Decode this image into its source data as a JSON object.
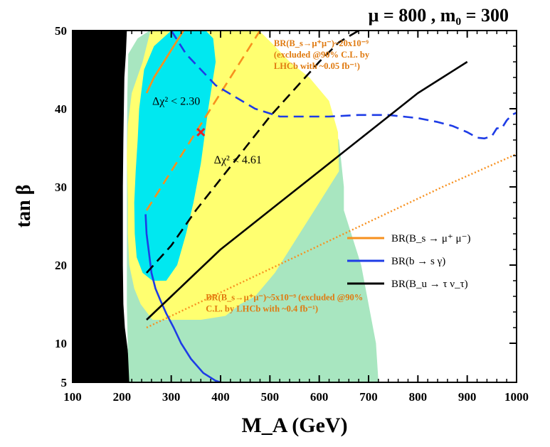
{
  "chart_data": {
    "type": "line",
    "title": "μ = 800 ,  m₀ = 300",
    "xlabel": "M_A (GeV)",
    "ylabel": "tan β",
    "xlim": [
      100,
      1000
    ],
    "ylim": [
      5,
      50
    ],
    "x_ticks": [
      100,
      200,
      300,
      400,
      500,
      600,
      700,
      800,
      900,
      1000
    ],
    "y_ticks": [
      5,
      10,
      20,
      30,
      40,
      50
    ],
    "colors": {
      "excluded": "#000000",
      "outer": "#a8e6c0",
      "chi461": "#ffff70",
      "chi230": "#00e8f0",
      "bsmumu": "#f7901e",
      "bsgamma": "#1e3ce6",
      "btaunu": "#000000",
      "annotation": "#e07a10",
      "marker": "#e82020"
    },
    "regions": [
      {
        "id": "excluded",
        "points": [
          [
            100,
            5
          ],
          [
            100,
            50
          ],
          [
            210,
            50
          ],
          [
            208,
            47
          ],
          [
            205,
            44
          ],
          [
            204,
            40
          ],
          [
            203,
            36
          ],
          [
            202,
            30
          ],
          [
            202,
            25
          ],
          [
            202,
            20
          ],
          [
            203,
            15
          ],
          [
            206,
            12
          ],
          [
            212,
            9
          ],
          [
            215,
            7
          ],
          [
            220,
            5
          ]
        ]
      },
      {
        "id": "outer",
        "points": [
          [
            215,
            5
          ],
          [
            212,
            9
          ],
          [
            210,
            15
          ],
          [
            210,
            25
          ],
          [
            210,
            35
          ],
          [
            211,
            42
          ],
          [
            213,
            47
          ],
          [
            232,
            49
          ],
          [
            256,
            50
          ],
          [
            470,
            50
          ],
          [
            500,
            47
          ],
          [
            560,
            43
          ],
          [
            600,
            40
          ],
          [
            640,
            36
          ],
          [
            650,
            30
          ],
          [
            650,
            27
          ],
          [
            685,
            20
          ],
          [
            700,
            15
          ],
          [
            715,
            10
          ],
          [
            720,
            5
          ]
        ]
      },
      {
        "id": "chi461",
        "points": [
          [
            258,
            50
          ],
          [
            242,
            46
          ],
          [
            220,
            42
          ],
          [
            212,
            38
          ],
          [
            210,
            34
          ],
          [
            212,
            28
          ],
          [
            212,
            24
          ],
          [
            215,
            20
          ],
          [
            225,
            17
          ],
          [
            238,
            15
          ],
          [
            262,
            13
          ],
          [
            300,
            13
          ],
          [
            360,
            13
          ],
          [
            410,
            13.5
          ],
          [
            440,
            15
          ],
          [
            470,
            16
          ],
          [
            510,
            19
          ],
          [
            560,
            24
          ],
          [
            600,
            28
          ],
          [
            620,
            30
          ],
          [
            640,
            32
          ],
          [
            638,
            37
          ],
          [
            620,
            41
          ],
          [
            580,
            44
          ],
          [
            540,
            46
          ],
          [
            510,
            48
          ],
          [
            478,
            50
          ]
        ]
      },
      {
        "id": "chi230",
        "points": [
          [
            300,
            50
          ],
          [
            265,
            48
          ],
          [
            245,
            45
          ],
          [
            235,
            40
          ],
          [
            232,
            36
          ],
          [
            228,
            32
          ],
          [
            225,
            28
          ],
          [
            226,
            24
          ],
          [
            230,
            21
          ],
          [
            242,
            19
          ],
          [
            262,
            18
          ],
          [
            290,
            18
          ],
          [
            312,
            20
          ],
          [
            330,
            24
          ],
          [
            345,
            28
          ],
          [
            360,
            33
          ],
          [
            375,
            40
          ],
          [
            390,
            46
          ],
          [
            385,
            49
          ],
          [
            370,
            50
          ]
        ]
      }
    ],
    "series": [
      {
        "id": "bsmumu",
        "label": "BR(B_s → μ⁺ μ⁻)",
        "style": "solid",
        "x": [
          250,
          265,
          285,
          305,
          325
        ],
        "y": [
          42,
          44,
          46,
          48,
          50
        ]
      },
      {
        "id": "bsmumu_dashed",
        "style": "dashed",
        "color_key": "bsmumu",
        "x": [
          250,
          290,
          330,
          370,
          410,
          450,
          480
        ],
        "y": [
          27,
          31,
          35,
          39,
          43,
          47,
          50
        ]
      },
      {
        "id": "bsmumu_dotted",
        "style": "dotted",
        "color_key": "bsmumu",
        "x": [
          250,
          400,
          550,
          700,
          850,
          1000
        ],
        "y": [
          12,
          16.5,
          21,
          25.5,
          30,
          34.2
        ]
      },
      {
        "id": "bsgamma_upper",
        "style": "dashed",
        "color_key": "bsgamma",
        "x": [
          300,
          330,
          360,
          390,
          430,
          470,
          520,
          570,
          620,
          680,
          740,
          800,
          840,
          870,
          900,
          920,
          935,
          950,
          960,
          970,
          980,
          990,
          1000
        ],
        "y": [
          50,
          47,
          45,
          43,
          41.5,
          40,
          39,
          39,
          39,
          39.2,
          39.2,
          38.8,
          38.3,
          37.8,
          37,
          36.3,
          36.2,
          36.5,
          37.5,
          37.5,
          38.5,
          39.2,
          39.5
        ]
      },
      {
        "id": "bsgamma",
        "label": "BR(b → s γ)",
        "style": "solid",
        "x": [
          248,
          250,
          255,
          260,
          268,
          278,
          290,
          305,
          320,
          340,
          365,
          390,
          400
        ],
        "y": [
          26.5,
          24,
          21.5,
          19,
          17,
          15.5,
          13.8,
          12,
          10,
          8,
          6.2,
          5.2,
          5
        ]
      },
      {
        "id": "btaunu",
        "label": "BR(B_u → τ ν_τ)",
        "style": "solid",
        "x": [
          250,
          300,
          350,
          400,
          450,
          500,
          550,
          600,
          650,
          700,
          750,
          800,
          850,
          900
        ],
        "y": [
          13,
          16,
          19,
          22,
          24.5,
          27,
          29.5,
          32,
          34.5,
          37,
          39.5,
          42,
          44,
          46
        ]
      },
      {
        "id": "btaunu_dashed",
        "style": "dashed",
        "color_key": "btaunu",
        "x": [
          250,
          300,
          350,
          400,
          450,
          500,
          550,
          600,
          640,
          680
        ],
        "y": [
          19,
          22.5,
          27,
          31,
          35,
          39,
          42.5,
          46,
          48.5,
          50
        ]
      }
    ],
    "best_fit": {
      "x": 360,
      "y": 37,
      "marker": "x"
    },
    "region_labels": [
      {
        "text": "Δχ² < 2.30",
        "x": 310,
        "y": 40.5
      },
      {
        "text": "Δχ² < 4.61",
        "x": 435,
        "y": 33
      }
    ],
    "annotations": [
      {
        "lines": [
          "BR(B_s→μ⁺μ⁻)~20x10⁻⁹",
          "(excluded @90% C.L. by",
          "LHCb with ~0.05 fb⁻¹)"
        ],
        "x": 508,
        "y": 48
      },
      {
        "lines": [
          "BR(B_s→μ⁺μ⁻)~5x10⁻⁹ (excluded @90%",
          "C.L. by LHCb with ~0.4 fb⁻¹)"
        ],
        "x": 370,
        "y": 15.5
      }
    ],
    "legend": {
      "placement": "center-right",
      "entries": [
        "bsmumu",
        "bsgamma",
        "btaunu"
      ]
    }
  }
}
